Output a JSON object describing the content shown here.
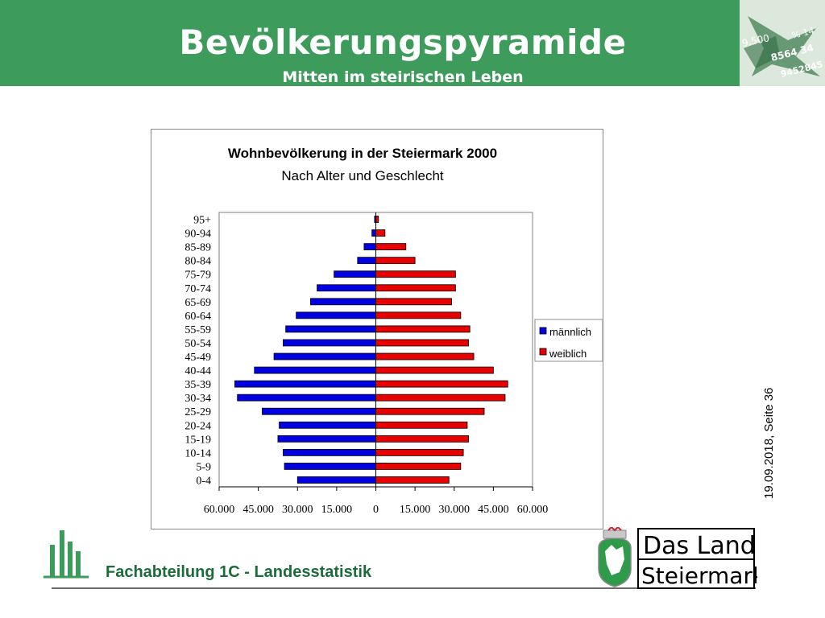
{
  "header": {
    "title": "Bevölkerungspyramide",
    "subtitle": "Mitten im steirischen Leben",
    "corner_numbers": [
      "9.500",
      "8564 34",
      "9452845",
      "% 14"
    ]
  },
  "side_note": "19.09.2018, Seite 36",
  "footer": {
    "department": "Fachabteilung 1C - Landesstatistik",
    "brand_line1": "Das Land",
    "brand_line2": "Steiermark"
  },
  "colors": {
    "header_green": "#3d9b5c",
    "male": "#0000e0",
    "female": "#e60000",
    "footer_green": "#1d6b3a"
  },
  "chart_data": {
    "type": "bar",
    "orientation": "horizontal-pyramid",
    "title": "Wohnbevölkerung in der Steiermark 2000",
    "subtitle": "Nach Alter und Geschlecht",
    "categories": [
      "0-4",
      "5-9",
      "10-14",
      "15-19",
      "20-24",
      "25-29",
      "30-34",
      "35-39",
      "40-44",
      "45-49",
      "50-54",
      "55-59",
      "60-64",
      "65-69",
      "70-74",
      "75-79",
      "80-84",
      "85-89",
      "90-94",
      "95+"
    ],
    "series": [
      {
        "name": "männlich",
        "values": [
          30000,
          35000,
          35500,
          37500,
          37000,
          43500,
          53000,
          54000,
          46500,
          39000,
          35500,
          34500,
          30500,
          25000,
          22500,
          16000,
          7000,
          4500,
          1500,
          500
        ]
      },
      {
        "name": "weiblich",
        "values": [
          28000,
          32500,
          33500,
          35500,
          35000,
          41500,
          49500,
          50500,
          45000,
          37500,
          35500,
          36000,
          32500,
          29000,
          30500,
          30500,
          15000,
          11500,
          3500,
          1000
        ]
      }
    ],
    "xlim": [
      -60000,
      60000
    ],
    "xticks": [
      "60.000",
      "45.000",
      "30.000",
      "15.000",
      "0",
      "15.000",
      "30.000",
      "45.000",
      "60.000"
    ],
    "legend_position": "right",
    "grid": false
  }
}
